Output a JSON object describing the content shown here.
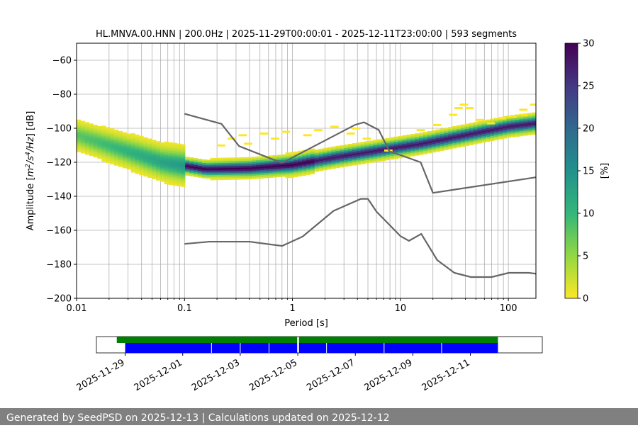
{
  "chart_data": {
    "type": "heatmap",
    "title": "HL.MNVA.00.HNN | 200.0Hz | 2025-11-29T00:00:01 - 2025-12-11T23:00:00 | 593 segments",
    "xlabel": "Period [s]",
    "ylabel_parts": [
      "Amplitude [",
      "m",
      "2",
      "/s",
      "4",
      "/Hz",
      "] [dB]"
    ],
    "x_scale": "log",
    "xlim": [
      0.01,
      180
    ],
    "ylim": [
      -200,
      -50
    ],
    "grid": true,
    "x_ticks": [
      {
        "value": 0.01,
        "label": "0.01"
      },
      {
        "value": 0.1,
        "label": "0.1"
      },
      {
        "value": 1,
        "label": "1"
      },
      {
        "value": 10,
        "label": "10"
      },
      {
        "value": 100,
        "label": "100"
      }
    ],
    "y_ticks": [
      {
        "value": -60,
        "label": "−60"
      },
      {
        "value": -80,
        "label": "−80"
      },
      {
        "value": -100,
        "label": "−100"
      },
      {
        "value": -120,
        "label": "−120"
      },
      {
        "value": -140,
        "label": "−140"
      },
      {
        "value": -160,
        "label": "−160"
      },
      {
        "value": -180,
        "label": "−180"
      },
      {
        "value": -200,
        "label": "−200"
      }
    ],
    "colormap": "viridis",
    "colorbar": {
      "label": "[%]",
      "range": [
        0,
        30
      ],
      "ticks": [
        {
          "value": 0,
          "label": "0"
        },
        {
          "value": 5,
          "label": "5"
        },
        {
          "value": 10,
          "label": "10"
        },
        {
          "value": 15,
          "label": "15"
        },
        {
          "value": 20,
          "label": "20"
        },
        {
          "value": 25,
          "label": "25"
        },
        {
          "value": 30,
          "label": "30"
        }
      ]
    },
    "noise_models": [
      {
        "points": [
          [
            0.1,
            -91.5
          ],
          [
            0.22,
            -97.4
          ],
          [
            0.32,
            -110.5
          ],
          [
            0.8,
            -120.4
          ],
          [
            3.8,
            -98.0
          ],
          [
            4.6,
            -96.5
          ],
          [
            6.3,
            -101.0
          ],
          [
            7.9,
            -113.5
          ],
          [
            15.4,
            -120.0
          ],
          [
            20.0,
            -138.0
          ],
          [
            354.8,
            -126.0
          ]
        ]
      },
      {
        "points": [
          [
            0.1,
            -168.0
          ],
          [
            0.17,
            -166.7
          ],
          [
            0.4,
            -166.7
          ],
          [
            0.8,
            -169.2
          ],
          [
            1.24,
            -163.7
          ],
          [
            2.4,
            -148.6
          ],
          [
            4.3,
            -141.5
          ],
          [
            5.0,
            -141.5
          ],
          [
            6.0,
            -149.0
          ],
          [
            10.0,
            -163.4
          ],
          [
            12.0,
            -166.2
          ],
          [
            15.6,
            -162.1
          ],
          [
            21.9,
            -177.5
          ],
          [
            31.6,
            -185.0
          ],
          [
            45.0,
            -187.5
          ],
          [
            70.0,
            -187.5
          ],
          [
            101.0,
            -185.0
          ],
          [
            154.0,
            -185.0
          ],
          [
            328.0,
            -187.5
          ]
        ]
      }
    ],
    "density_bands": [
      {
        "x_range": [
          0.01,
          0.18
        ],
        "y_range": [
          -128,
          -96
        ],
        "intensity": [
          0,
          12
        ]
      },
      {
        "x_range": [
          0.12,
          1.5
        ],
        "y_range": [
          -126,
          -119
        ],
        "intensity": [
          25,
          30
        ]
      },
      {
        "x_range": [
          1.5,
          180
        ],
        "y_range": [
          -120,
          -95
        ],
        "intensity": [
          12,
          30
        ]
      },
      {
        "x_range": [
          0.2,
          180
        ],
        "y_range": [
          -115,
          -84
        ],
        "intensity": [
          0,
          3
        ]
      }
    ],
    "availability": {
      "x_ticks": [
        "2025-11-29",
        "2025-12-01",
        "2025-12-03",
        "2025-12-05",
        "2025-12-07",
        "2025-12-09",
        "2025-12-11"
      ],
      "range": [
        "2025-11-28T00:00",
        "2025-12-13T12:00"
      ],
      "data_bar": {
        "color": "#008000",
        "segments": [
          [
            "2025-11-28T17:00",
            "2025-12-04T23:30"
          ],
          [
            "2025-12-05T01:00",
            "2025-12-11T23:00"
          ]
        ]
      },
      "processed_bar": {
        "color": "#0000ff",
        "segments": [
          [
            "2025-11-29T00:00",
            "2025-12-04T23:30"
          ],
          [
            "2025-12-05T01:00",
            "2025-12-11T23:00"
          ]
        ]
      }
    },
    "colors": {
      "noise_model": "#666666",
      "grid": "#b0b0b0",
      "footer_bg": "#808080"
    }
  },
  "footer": {
    "text": "Generated by SeedPSD on 2025-12-13 | Calculations updated on 2025-12-12"
  }
}
